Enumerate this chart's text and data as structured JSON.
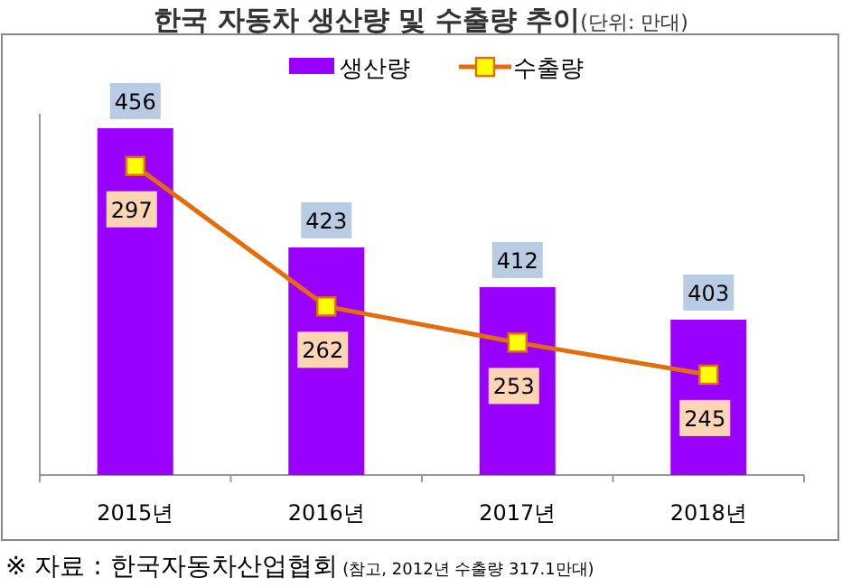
{
  "chart_data": {
    "type": "bar",
    "title": "한국 자동차 생산량 및 수출량 추이",
    "subtitle": "(단위: 만대)",
    "categories": [
      "2015년",
      "2016년",
      "2017년",
      "2018년"
    ],
    "series": [
      {
        "name": "생산량",
        "color": "#9900ff",
        "values": [
          456,
          423,
          412,
          403
        ]
      },
      {
        "name": "수출량",
        "type": "line",
        "axis": "y2",
        "color": "#e46c0a",
        "marker": "square",
        "values": [
          297,
          262,
          253,
          245
        ]
      }
    ],
    "ylim": [
      360,
      460
    ],
    "y2lim": [
      220,
      310
    ],
    "tick_labels": "x",
    "data_labels": true,
    "legend": "top",
    "annotations": [
      "※ 자료 : 한국자동차산업협회",
      "(참고, 2012년 수출량 317.1만대)"
    ]
  }
}
